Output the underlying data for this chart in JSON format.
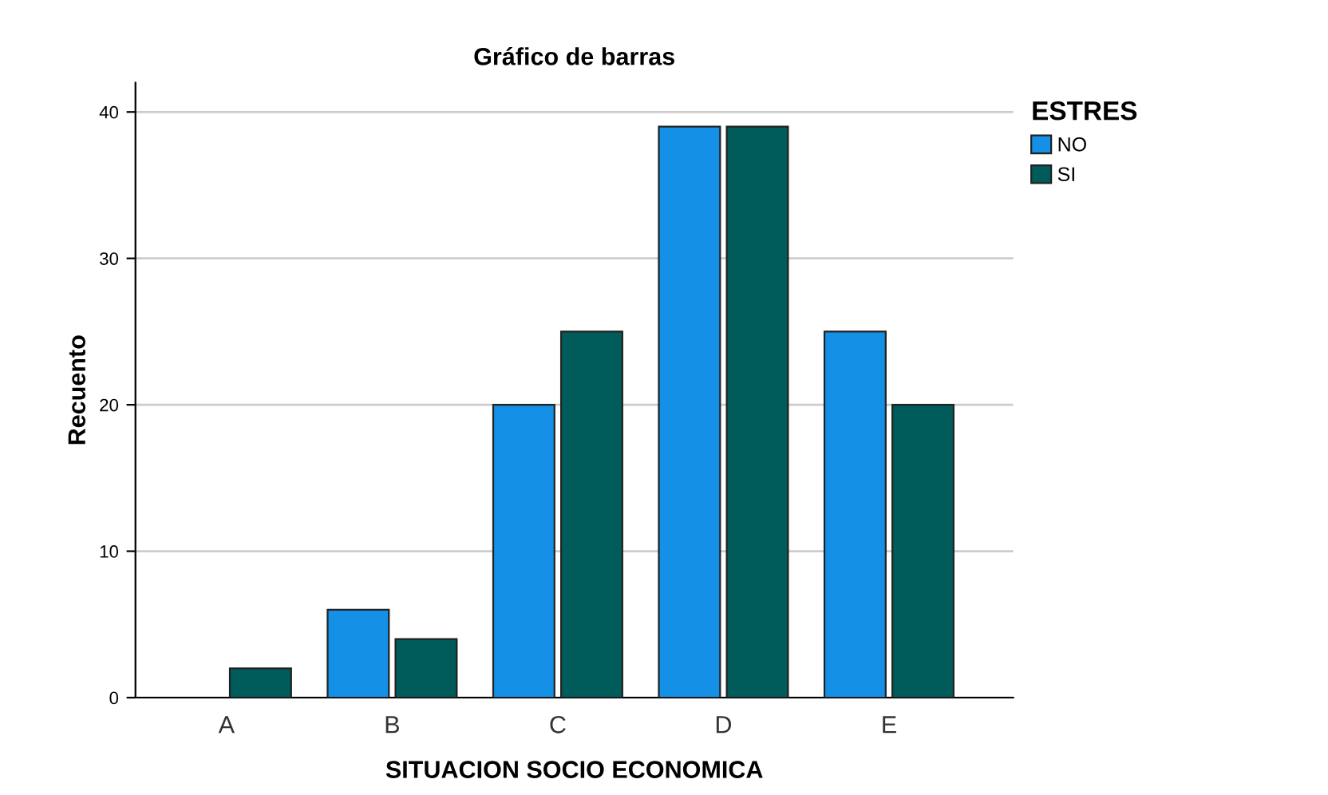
{
  "chart_data": {
    "type": "bar",
    "title": "Gráfico de barras",
    "xlabel": "SITUACION SOCIO ECONOMICA",
    "ylabel": "Recuento",
    "legend_title": "ESTRES",
    "categories": [
      "A",
      "B",
      "C",
      "D",
      "E"
    ],
    "series": [
      {
        "name": "NO",
        "color": "#1490e6",
        "values": [
          null,
          6,
          20,
          39,
          25
        ]
      },
      {
        "name": "SI",
        "color": "#005c5a",
        "values": [
          2,
          4,
          25,
          39,
          20
        ]
      }
    ],
    "ylim": [
      0,
      42
    ],
    "yticks": [
      0,
      10,
      20,
      30,
      40
    ],
    "grid": "y",
    "legend": "top right"
  }
}
